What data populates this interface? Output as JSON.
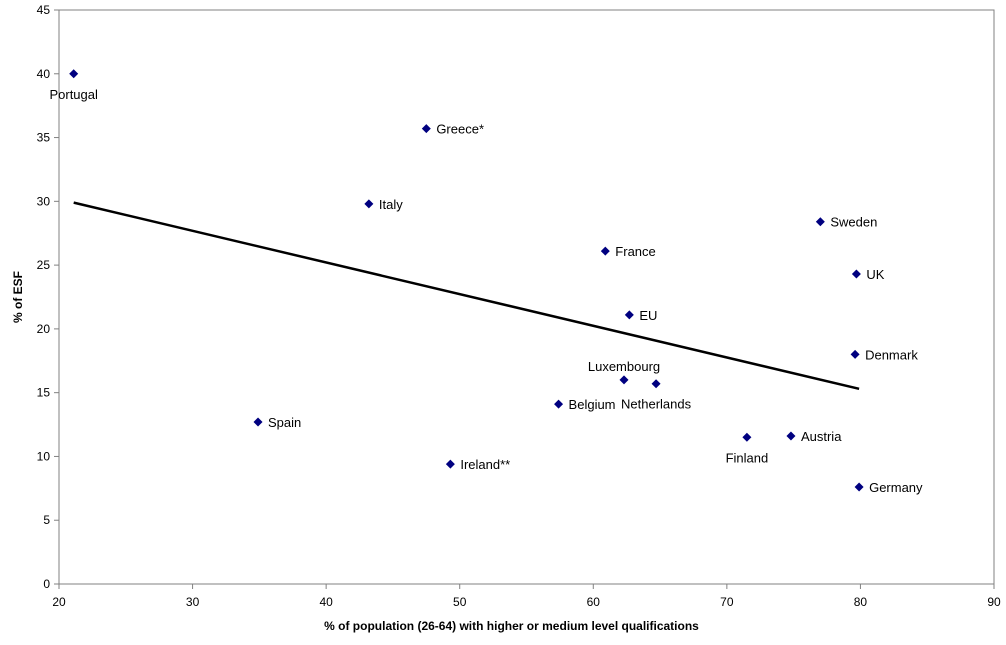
{
  "chart_data": {
    "type": "scatter",
    "title": "",
    "xlabel": "% of population (26-64) with higher or medium level qualifications",
    "ylabel": "% of ESF",
    "xlim": [
      20,
      90
    ],
    "ylim": [
      0,
      45
    ],
    "xticks": [
      20,
      30,
      40,
      50,
      60,
      70,
      80,
      90
    ],
    "yticks": [
      0,
      5,
      10,
      15,
      20,
      25,
      30,
      35,
      40,
      45
    ],
    "grid": false,
    "legend": "none",
    "marker_color": "#000080",
    "trendline_color": "#000000",
    "points": [
      {
        "label": "Portugal",
        "x": 21.1,
        "y": 40.0
      },
      {
        "label": "Greece*",
        "x": 47.5,
        "y": 35.7
      },
      {
        "label": "Italy",
        "x": 43.2,
        "y": 29.8
      },
      {
        "label": "Sweden",
        "x": 77.0,
        "y": 28.4
      },
      {
        "label": "France",
        "x": 60.9,
        "y": 26.1
      },
      {
        "label": "UK",
        "x": 79.7,
        "y": 24.3
      },
      {
        "label": "EU",
        "x": 62.7,
        "y": 21.1
      },
      {
        "label": "Denmark",
        "x": 79.6,
        "y": 18.0
      },
      {
        "label": "Luxembourg",
        "x": 62.3,
        "y": 16.0
      },
      {
        "label": "Netherlands",
        "x": 64.7,
        "y": 15.7
      },
      {
        "label": "Belgium",
        "x": 57.4,
        "y": 14.1
      },
      {
        "label": "Spain",
        "x": 34.9,
        "y": 12.7
      },
      {
        "label": "Finland",
        "x": 71.5,
        "y": 11.5
      },
      {
        "label": "Austria",
        "x": 74.8,
        "y": 11.6
      },
      {
        "label": "Ireland**",
        "x": 49.3,
        "y": 9.4
      },
      {
        "label": "Germany",
        "x": 79.9,
        "y": 7.6
      }
    ],
    "trendline": {
      "x": [
        21.1,
        79.9
      ],
      "y": [
        29.9,
        15.3
      ]
    }
  }
}
